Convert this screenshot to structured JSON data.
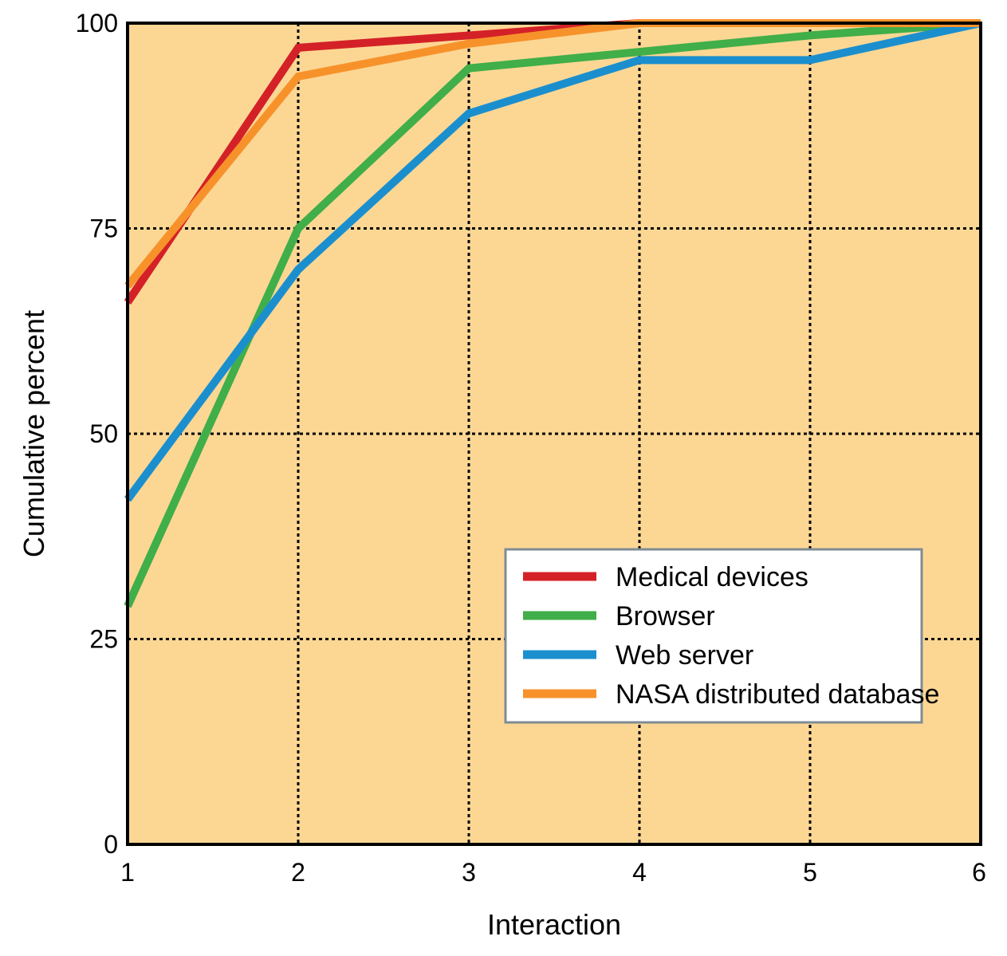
{
  "chart_data": {
    "type": "line",
    "xlabel": "Interaction",
    "ylabel": "Cumulative percent",
    "x": [
      1,
      2,
      3,
      4,
      5,
      6
    ],
    "x_ticks": [
      "1",
      "2",
      "3",
      "4",
      "5",
      "6"
    ],
    "y_ticks": [
      "0",
      "25",
      "50",
      "75",
      "100"
    ],
    "xlim": [
      1,
      6
    ],
    "ylim": [
      0,
      100
    ],
    "grid": true,
    "legend_position": "bottom-right",
    "background_color": "#fcd794",
    "series": [
      {
        "name": "Medical devices",
        "color": "#d42127",
        "values": [
          66,
          97,
          98.5,
          100,
          100,
          100
        ]
      },
      {
        "name": "Browser",
        "color": "#40ae49",
        "values": [
          29,
          75,
          94.5,
          96.5,
          98.5,
          100
        ]
      },
      {
        "name": "Web server",
        "color": "#1b8fce",
        "values": [
          42,
          70,
          89,
          95.5,
          95.5,
          100
        ]
      },
      {
        "name": "NASA distributed database",
        "color": "#f7922b",
        "values": [
          68,
          93.5,
          97.5,
          100,
          100,
          100
        ]
      }
    ]
  }
}
